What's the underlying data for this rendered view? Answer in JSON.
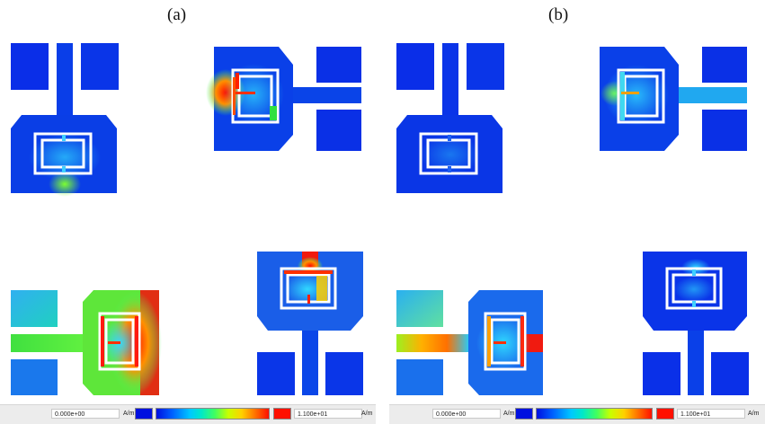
{
  "panels": [
    {
      "label": "(a)",
      "legend": {
        "min": "0.000e+00",
        "max": "1.100e+01",
        "unit": "A/m"
      }
    },
    {
      "label": "(b)",
      "legend": {
        "min": "0.000e+00",
        "max": "1.100e+01",
        "unit": "A/m"
      }
    }
  ],
  "colors": {
    "field_low": "#0a2ee8",
    "field_mid": "#35c6f0",
    "field_green": "#5ee63a",
    "field_high": "#ec1c10",
    "ring": "#ffffff"
  }
}
